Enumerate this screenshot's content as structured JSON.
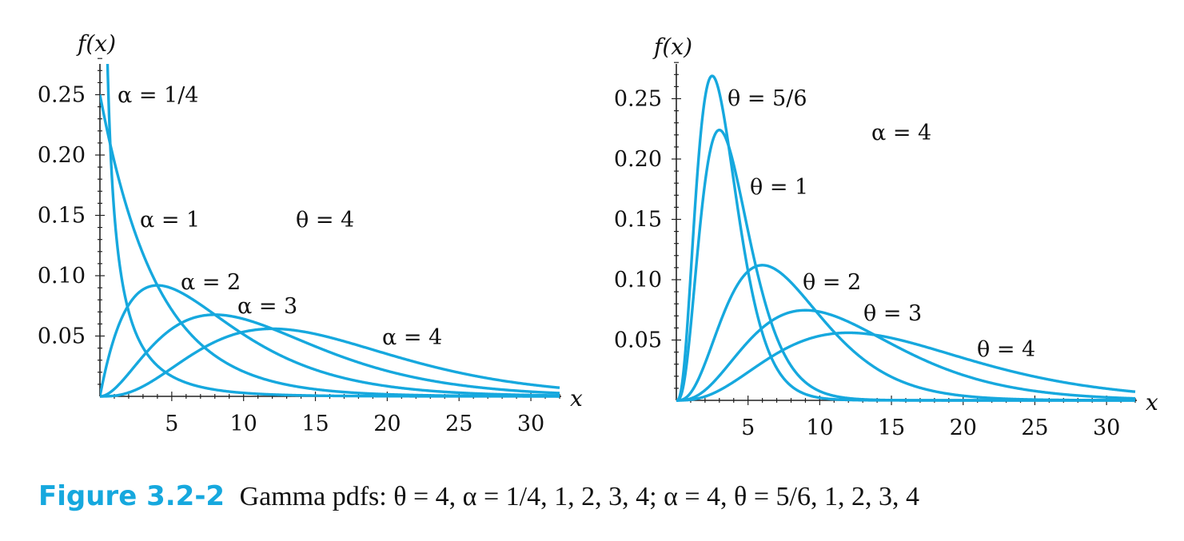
{
  "chart_data": [
    {
      "type": "line",
      "title": "",
      "xlabel": "x",
      "ylabel": "f(x)",
      "xlim": [
        0,
        32
      ],
      "ylim": [
        0,
        0.28
      ],
      "xticks": [
        5,
        10,
        15,
        20,
        25,
        30
      ],
      "yticks": [
        0.05,
        0.1,
        0.15,
        0.2,
        0.25
      ],
      "xtick_labels": [
        "5",
        "10",
        "15",
        "20",
        "25",
        "30"
      ],
      "ytick_labels": [
        "0.05",
        "0.10",
        "0.15",
        "0.20",
        "0.25"
      ],
      "grid": false,
      "line_color": "#16a8de",
      "fixed_parameter": {
        "label": "θ = 4",
        "theta": 4
      },
      "series": [
        {
          "name": "α = 1/4",
          "alpha": 0.25,
          "theta": 4
        },
        {
          "name": "α = 1",
          "alpha": 1,
          "theta": 4
        },
        {
          "name": "α = 2",
          "alpha": 2,
          "theta": 4
        },
        {
          "name": "α = 3",
          "alpha": 3,
          "theta": 4
        },
        {
          "name": "α = 4",
          "alpha": 4,
          "theta": 4
        }
      ]
    },
    {
      "type": "line",
      "title": "",
      "xlabel": "x",
      "ylabel": "f(x)",
      "xlim": [
        0,
        32
      ],
      "ylim": [
        0,
        0.28
      ],
      "xticks": [
        5,
        10,
        15,
        20,
        25,
        30
      ],
      "yticks": [
        0.05,
        0.1,
        0.15,
        0.2,
        0.25
      ],
      "xtick_labels": [
        "5",
        "10",
        "15",
        "20",
        "25",
        "30"
      ],
      "ytick_labels": [
        "0.05",
        "0.10",
        "0.15",
        "0.20",
        "0.25"
      ],
      "grid": false,
      "line_color": "#16a8de",
      "fixed_parameter": {
        "label": "α = 4",
        "alpha": 4
      },
      "series": [
        {
          "name": "θ = 5/6",
          "alpha": 4,
          "theta": 0.8333
        },
        {
          "name": "θ = 1",
          "alpha": 4,
          "theta": 1
        },
        {
          "name": "θ = 2",
          "alpha": 4,
          "theta": 2
        },
        {
          "name": "θ = 3",
          "alpha": 4,
          "theta": 3
        },
        {
          "name": "θ = 4",
          "alpha": 4,
          "theta": 4
        }
      ]
    }
  ],
  "caption": {
    "label": "Figure 3.2-2",
    "text": "Gamma pdfs: θ = 4, α = 1/4, 1, 2, 3, 4; α = 4, θ = 5/6, 1, 2, 3, 4"
  }
}
